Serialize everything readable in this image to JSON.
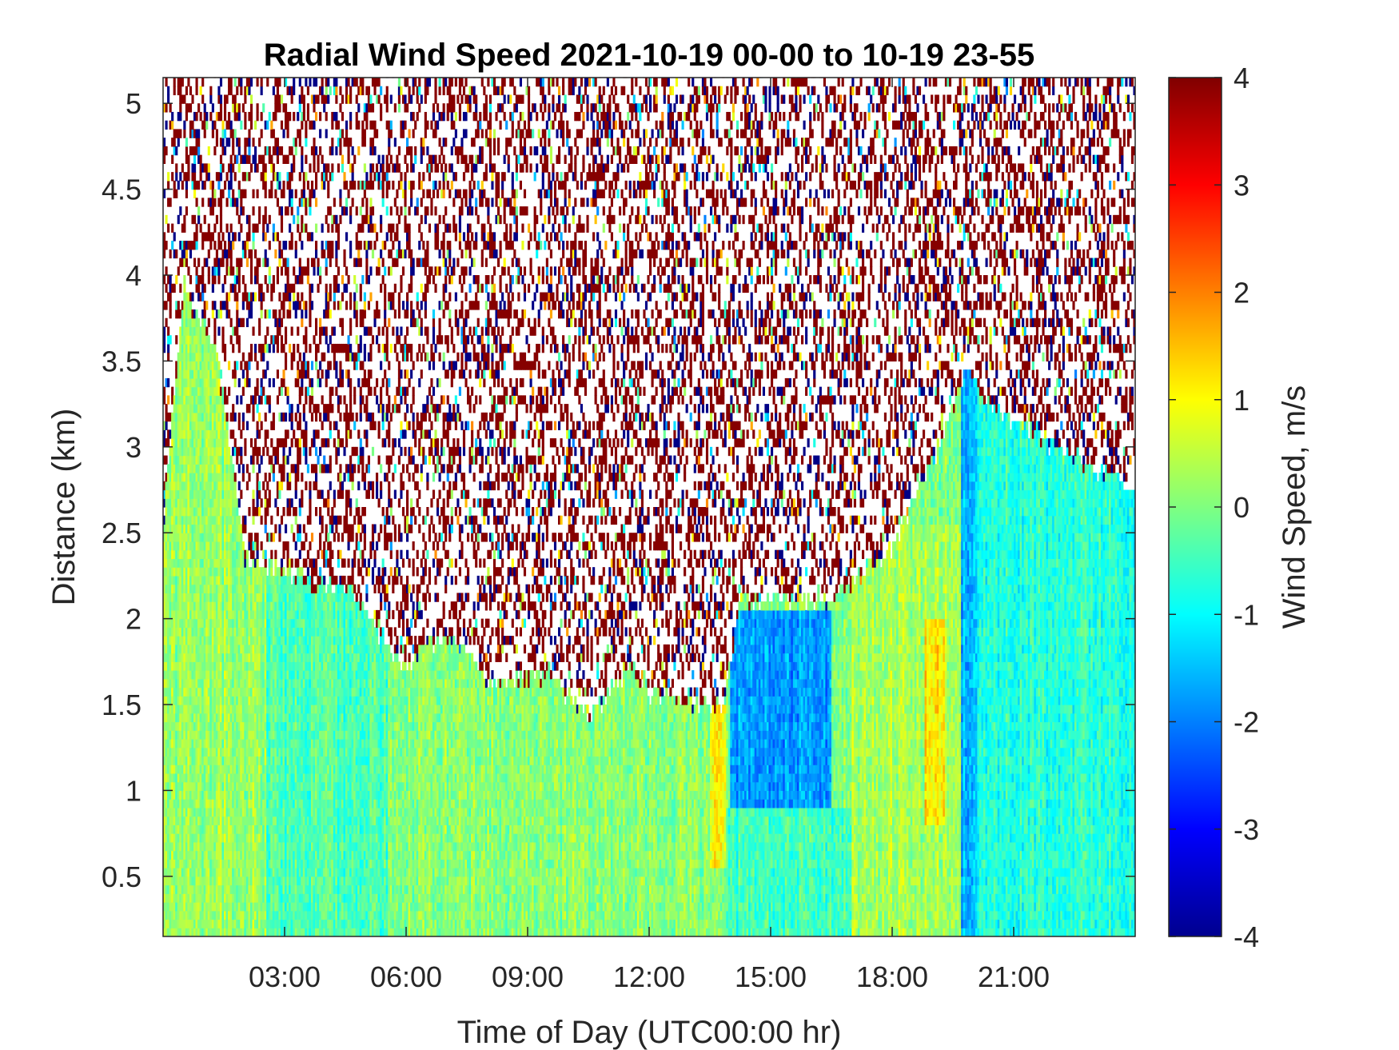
{
  "chart_data": {
    "type": "heatmap",
    "title": "Radial Wind Speed 2021-10-19 00-00 to 10-19 23-55",
    "xlabel": "Time of Day (UTC00:00 hr)",
    "ylabel": "Distance (km)",
    "colorbar_label": "Wind Speed, m/s",
    "colormap": "jet",
    "xlim": [
      0,
      24
    ],
    "ylim": [
      0.15,
      5.15
    ],
    "clim": [
      -4,
      4
    ],
    "x_ticks": [
      3,
      6,
      9,
      12,
      15,
      18,
      21
    ],
    "x_tick_labels": [
      "03:00",
      "06:00",
      "09:00",
      "12:00",
      "15:00",
      "18:00",
      "21:00"
    ],
    "y_ticks": [
      0.5,
      1,
      1.5,
      2,
      2.5,
      3,
      3.5,
      4,
      4.5,
      5
    ],
    "y_tick_labels": [
      "0.5",
      "1",
      "1.5",
      "2",
      "2.5",
      "3",
      "3.5",
      "4",
      "4.5",
      "5"
    ],
    "colorbar_ticks": [
      -4,
      -3,
      -2,
      -1,
      0,
      1,
      2,
      3,
      4
    ],
    "colorbar_tick_labels": [
      "-4",
      "-3",
      "-2",
      "-1",
      "0",
      "1",
      "2",
      "3",
      "4"
    ],
    "time_resolution_hr": 0.0833,
    "range_resolution_km": 0.05,
    "noise_region": "random extreme values (mostly +4 and -4) above the valid-signal boundary",
    "valid_signal_top_km": {
      "x": [
        0,
        0.5,
        1.3,
        2.0,
        2.6,
        3.8,
        4.5,
        6.0,
        6.5,
        7.2,
        8.0,
        9.5,
        10.5,
        11.5,
        12.0,
        13.8,
        14.2,
        16.5,
        18.0,
        19.0,
        19.8,
        20.5,
        24
      ],
      "y": [
        2.6,
        3.9,
        3.5,
        2.3,
        2.3,
        2.15,
        2.15,
        1.65,
        1.85,
        1.85,
        1.6,
        1.65,
        1.4,
        1.7,
        1.55,
        1.45,
        2.05,
        2.1,
        2.4,
        2.9,
        3.4,
        3.2,
        2.7
      ]
    },
    "wind_regimes": [
      {
        "x": [
          0,
          2.5
        ],
        "y": [
          0.15,
          3.9
        ],
        "speed_mps": 0.2
      },
      {
        "x": [
          2.5,
          5.5
        ],
        "y": [
          0.15,
          2.2
        ],
        "speed_mps": -0.4
      },
      {
        "x": [
          5.5,
          13.5
        ],
        "y": [
          0.15,
          1.8
        ],
        "speed_mps": 0.1
      },
      {
        "x": [
          13.5,
          13.9
        ],
        "y": [
          0.5,
          1.5
        ],
        "speed_mps": 1.0
      },
      {
        "x": [
          14.0,
          16.5
        ],
        "y": [
          0.9,
          2.05
        ],
        "speed_mps": -1.8
      },
      {
        "x": [
          13.9,
          17.0
        ],
        "y": [
          0.15,
          0.9
        ],
        "speed_mps": -0.5
      },
      {
        "x": [
          17.0,
          19.7
        ],
        "y": [
          0.15,
          2.5
        ],
        "speed_mps": 0.3
      },
      {
        "x": [
          18.8,
          19.3
        ],
        "y": [
          0.8,
          2.0
        ],
        "speed_mps": 1.2
      },
      {
        "x": [
          19.7,
          20.1
        ],
        "y": [
          0.15,
          3.4
        ],
        "speed_mps": -1.6
      },
      {
        "x": [
          20.1,
          24
        ],
        "y": [
          0.15,
          3.2
        ],
        "speed_mps": -0.7
      }
    ]
  }
}
